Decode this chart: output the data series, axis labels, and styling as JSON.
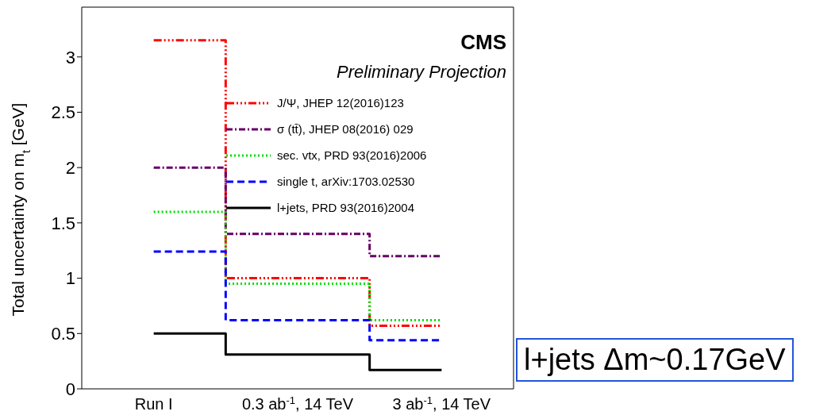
{
  "chart_data": {
    "type": "step",
    "title": "CMS",
    "subtitle": "Preliminary Projection",
    "ylabel": "Total uncertainty on m$_{t}$ [GeV]",
    "categories": [
      "Run I",
      "0.3 ab$^{-1}$, 14 TeV",
      "3 ab$^{-1}$, 14 TeV"
    ],
    "series": [
      {
        "name": "J/Ψ, JHEP 12(2016)123",
        "color": "#ff0000",
        "line_style": "dashdotdot",
        "values": [
          3.15,
          1.0,
          0.57
        ]
      },
      {
        "name": "σ (tt̄), JHEP 08(2016) 029",
        "color": "#660066",
        "line_style": "dashdot",
        "values": [
          2.0,
          1.4,
          1.2
        ]
      },
      {
        "name": "sec. vtx, PRD 93(2016)2006",
        "color": "#00dd00",
        "line_style": "dotted",
        "values": [
          1.6,
          0.95,
          0.62
        ]
      },
      {
        "name": "single t, arXiv:1703.02530",
        "color": "#0000ff",
        "line_style": "dashed",
        "values": [
          1.24,
          0.62,
          0.44
        ]
      },
      {
        "name": "l+jets, PRD 93(2016)2004",
        "color": "#000000",
        "line_style": "solid",
        "values": [
          0.5,
          0.31,
          0.17
        ]
      }
    ],
    "ylim": [
      0,
      3.45
    ],
    "yticks": [
      0,
      0.5,
      1,
      1.5,
      2,
      2.5,
      3
    ],
    "grid": false,
    "legend": "top right",
    "marker": "none",
    "annotations": [
      "l+jets Δm~0.17GeV"
    ]
  }
}
